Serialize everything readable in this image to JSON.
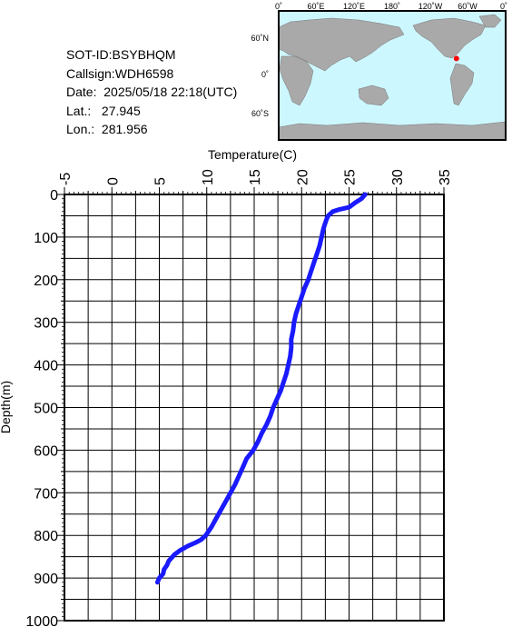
{
  "meta": {
    "sot_id": "SOT-ID:BSYBHQM",
    "callsign": "Callsign:WDH6598",
    "date": "Date:  2025/05/18 22:18(UTC)",
    "lat": "Lat.:   27.945",
    "lon": "Lon.:  281.956"
  },
  "map": {
    "lon_labels": [
      "0˚",
      "60˚E",
      "120˚E",
      "180˚",
      "120˚W",
      "60˚W",
      "0˚"
    ],
    "lat_labels": [
      "60˚N",
      "0˚",
      "60˚S"
    ],
    "ocean_color": "#cdf7ff",
    "land_color": "#a9a9a9",
    "marker_color": "#ff0000",
    "marker": {
      "lat": 27.945,
      "lon": 281.956
    }
  },
  "chart_data": {
    "type": "line",
    "xlabel": "Temperature(C)",
    "ylabel": "Depth(m)",
    "xlim": [
      -5,
      35
    ],
    "ylim": [
      0,
      1000
    ],
    "y_inverted": true,
    "x_tick_labels": [
      "-5",
      "0",
      "5",
      "10",
      "15",
      "20",
      "25",
      "30",
      "35"
    ],
    "y_tick_labels": [
      "0",
      "100",
      "200",
      "300",
      "400",
      "500",
      "600",
      "700",
      "800",
      "900",
      "1000"
    ],
    "grid": true,
    "line_color": "#1a1aff",
    "series": [
      {
        "x": [
          26.7,
          26.3,
          25.6,
          25.0,
          24.0,
          23.3,
          22.8,
          22.6,
          22.3,
          22.1,
          21.9,
          21.6,
          21.3,
          21.0,
          20.7,
          20.3,
          20.0,
          19.7,
          19.4,
          19.2,
          19.1,
          18.9,
          18.9,
          18.9,
          18.8,
          18.6,
          18.4,
          18.1,
          17.8,
          17.4,
          17.0,
          16.7,
          16.3,
          15.8,
          15.4,
          14.9,
          14.2,
          13.8,
          13.4,
          13.0,
          12.5,
          12.0,
          11.5,
          11.0,
          10.5,
          9.9,
          9.4,
          9.0,
          8.5,
          8.0,
          7.6,
          7.2,
          6.6,
          6.0,
          5.8,
          5.5,
          5.4,
          5.2,
          5.0,
          4.9,
          4.8
        ],
        "y": [
          0,
          10,
          20,
          30,
          35,
          40,
          50,
          60,
          80,
          100,
          120,
          140,
          160,
          180,
          200,
          220,
          240,
          260,
          280,
          300,
          320,
          340,
          350,
          360,
          380,
          400,
          420,
          440,
          460,
          480,
          500,
          520,
          540,
          560,
          580,
          600,
          620,
          640,
          660,
          680,
          700,
          720,
          740,
          760,
          780,
          800,
          810,
          815,
          820,
          825,
          830,
          835,
          845,
          860,
          870,
          880,
          890,
          895,
          900,
          905,
          910
        ]
      }
    ]
  }
}
